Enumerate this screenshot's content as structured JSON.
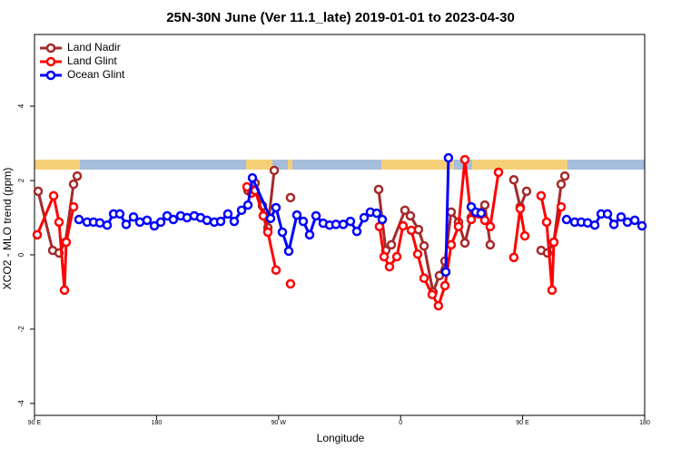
{
  "chart_data": {
    "type": "line",
    "title": "25N-30N June (Ver 11.1_late)   2019-01-01 to 2023-04-30",
    "x_label": "Longitude",
    "y_label": "XCO2 - MLO trend (ppm)",
    "xlim": [
      90,
      540
    ],
    "ylim": [
      -4.32,
      5.93
    ],
    "xticks": [
      {
        "value": 90,
        "label": "90 E"
      },
      {
        "value": 180,
        "label": "180"
      },
      {
        "value": 270,
        "label": "90 W"
      },
      {
        "value": 360,
        "label": "0"
      },
      {
        "value": 450,
        "label": "90 E"
      },
      {
        "value": 540,
        "label": "180"
      }
    ],
    "yticks": [
      -4,
      -2,
      0,
      2,
      4
    ],
    "legend": "top-left",
    "series": [
      {
        "name": "Land Nadir",
        "color": "#a52a2a",
        "x": [
          92.7,
          103.4,
          108.1,
          112.8,
          118.8,
          121.5,
          null,
          247.4,
          252.7,
          258.1,
          262.1,
          266.8,
          null,
          278.8,
          null,
          343.8,
          349.1,
          353.2,
          363.2,
          367.2,
          373.2,
          377.3,
          383.9,
          388.6,
          392.7,
          397.3,
          402.7,
          407.4,
          412.1,
          422.1,
          426.1,
          null,
          443.5,
          448.2,
          452.9,
          null,
          463.6,
          468.3,
          473.0,
          478.4,
          481.1
        ],
        "values": [
          1.71,
          0.12,
          0.05,
          0.34,
          1.9,
          2.12,
          null,
          1.73,
          1.93,
          1.32,
          0.73,
          2.27,
          null,
          1.54,
          null,
          1.76,
          0.12,
          0.27,
          1.2,
          1.05,
          0.68,
          0.24,
          -1.0,
          -0.56,
          -0.17,
          1.15,
          0.88,
          0.32,
          1.0,
          1.34,
          0.27,
          null,
          2.02,
          1.29,
          1.71,
          null,
          0.12,
          0.05,
          0.34,
          1.9,
          2.12
        ]
      },
      {
        "name": "Land Glint",
        "color": "#ff0000",
        "x": [
          92.0,
          104.1,
          108.1,
          112.1,
          113.4,
          118.8,
          null,
          246.7,
          250.0,
          252.7,
          258.7,
          262.1,
          268.1,
          null,
          278.8,
          null,
          344.4,
          347.8,
          351.8,
          357.2,
          361.8,
          367.9,
          372.6,
          377.3,
          383.3,
          387.9,
          392.7,
          397.3,
          402.7,
          407.4,
          412.1,
          418.1,
          422.1,
          426.1,
          432.2,
          null,
          443.5,
          448.2,
          451.6,
          null,
          463.6,
          467.7,
          471.7,
          473.0,
          478.4
        ],
        "values": [
          0.54,
          1.59,
          0.88,
          -0.95,
          0.34,
          1.29,
          null,
          1.83,
          1.66,
          1.73,
          1.05,
          0.61,
          -0.41,
          null,
          -0.78,
          null,
          0.76,
          -0.05,
          -0.32,
          -0.05,
          0.78,
          0.66,
          0.02,
          -0.63,
          -1.07,
          -1.37,
          -0.83,
          0.27,
          0.76,
          2.56,
          0.95,
          1.1,
          0.93,
          0.76,
          2.22,
          null,
          -0.07,
          1.24,
          0.51,
          null,
          1.59,
          0.88,
          -0.95,
          0.34,
          1.29
        ]
      },
      {
        "name": "Ocean Glint",
        "color": "#0000ff",
        "x": [
          122.8,
          128.8,
          133.5,
          138.2,
          143.6,
          148.3,
          152.9,
          157.6,
          163.0,
          167.7,
          173.0,
          178.4,
          183.1,
          187.8,
          192.4,
          197.8,
          202.5,
          207.8,
          212.5,
          217.2,
          222.6,
          227.3,
          232.6,
          237.3,
          242.7,
          247.4,
          250.7,
          264.1,
          268.1,
          272.8,
          277.5,
          283.5,
          288.2,
          292.9,
          297.6,
          302.9,
          307.6,
          312.3,
          317.7,
          323.0,
          327.7,
          333.1,
          337.7,
          342.4,
          346.5,
          null,
          393.3,
          395.3,
          393.3,
          null,
          412.1,
          415.4,
          419.4,
          null,
          482.4,
          488.4,
          493.2,
          497.9,
          503.2,
          507.9,
          512.6,
          517.3,
          522.6,
          527.3,
          532.7,
          538.0
        ],
        "values": [
          0.95,
          0.88,
          0.88,
          0.86,
          0.8,
          1.1,
          1.1,
          0.82,
          1.02,
          0.88,
          0.93,
          0.78,
          0.88,
          1.05,
          0.95,
          1.05,
          1.0,
          1.05,
          1.0,
          0.93,
          0.88,
          0.9,
          1.1,
          0.9,
          1.2,
          1.34,
          2.07,
          0.98,
          1.27,
          0.61,
          0.1,
          1.07,
          0.9,
          0.54,
          1.05,
          0.85,
          0.8,
          0.82,
          0.82,
          0.9,
          0.63,
          1.0,
          1.15,
          1.12,
          0.95,
          null,
          -0.46,
          2.61,
          -0.46,
          null,
          1.29,
          1.15,
          1.12,
          null,
          0.95,
          0.88,
          0.88,
          0.86,
          0.8,
          1.1,
          1.1,
          0.82,
          1.02,
          0.88,
          0.93,
          0.78
        ]
      }
    ]
  }
}
